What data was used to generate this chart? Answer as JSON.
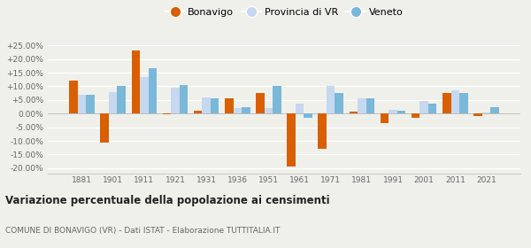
{
  "years": [
    1881,
    1901,
    1911,
    1921,
    1931,
    1936,
    1951,
    1961,
    1971,
    1981,
    1991,
    2001,
    2011,
    2021
  ],
  "bonavigo": [
    12.0,
    -10.5,
    23.0,
    -0.3,
    1.0,
    5.5,
    7.5,
    -19.5,
    -13.0,
    0.8,
    -3.5,
    -1.5,
    7.5,
    -0.8
  ],
  "provincia_vr": [
    7.0,
    8.0,
    13.5,
    9.5,
    6.0,
    2.0,
    2.0,
    3.5,
    10.0,
    5.5,
    1.5,
    4.5,
    8.5,
    0.5
  ],
  "veneto": [
    7.0,
    10.0,
    16.5,
    10.5,
    5.5,
    2.5,
    10.0,
    -1.5,
    7.5,
    5.5,
    1.0,
    3.5,
    7.5,
    2.5
  ],
  "color_bonavigo": "#d95f02",
  "color_provincia": "#c5d8f0",
  "color_veneto": "#7ab8d9",
  "title": "Variazione percentuale della popolazione ai censimenti",
  "subtitle": "COMUNE DI BONAVIGO (VR) - Dati ISTAT - Elaborazione TUTTITALIA.IT",
  "ylim": [
    -22,
    28
  ],
  "yticks": [
    -20,
    -15,
    -10,
    -5,
    0,
    5,
    10,
    15,
    20,
    25
  ],
  "background_color": "#f0f0eb"
}
